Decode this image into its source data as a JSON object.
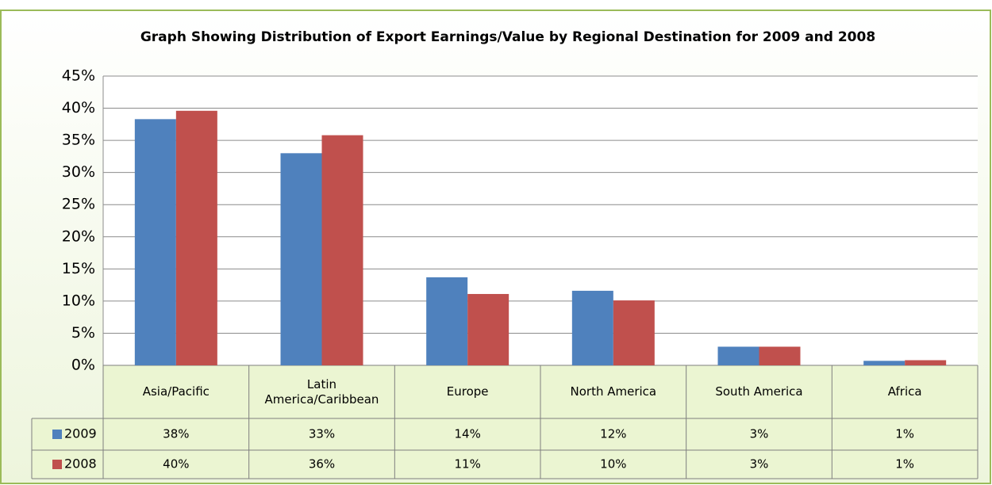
{
  "chart_data": {
    "type": "bar",
    "title": "Graph Showing Distribution of Export Earnings/Value by Regional Destination for 2009 and 2008",
    "categories": [
      "Asia/Pacific",
      "Latin America/Caribbean",
      "Europe",
      "North America",
      "South America",
      "Africa"
    ],
    "series": [
      {
        "name": "2009",
        "color": "#4f81bd",
        "values": [
          38.3,
          33.0,
          13.7,
          11.6,
          2.9,
          0.7
        ],
        "value_labels": [
          "38%",
          "33%",
          "14%",
          "12%",
          "3%",
          "1%"
        ]
      },
      {
        "name": "2008",
        "color": "#c0504d",
        "values": [
          39.6,
          35.8,
          11.1,
          10.1,
          2.9,
          0.8
        ],
        "value_labels": [
          "40%",
          "36%",
          "11%",
          "10%",
          "3%",
          "1%"
        ]
      }
    ],
    "ylim": [
      0,
      45
    ],
    "yticks": [
      {
        "value": 0,
        "label": "0%"
      },
      {
        "value": 5,
        "label": "5%"
      },
      {
        "value": 10,
        "label": "10%"
      },
      {
        "value": 15,
        "label": "15%"
      },
      {
        "value": 20,
        "label": "20%"
      },
      {
        "value": 25,
        "label": "25%"
      },
      {
        "value": 30,
        "label": "30%"
      },
      {
        "value": 35,
        "label": "35%"
      },
      {
        "value": 40,
        "label": "40%"
      },
      {
        "value": 45,
        "label": "45%"
      }
    ],
    "grid": true
  }
}
